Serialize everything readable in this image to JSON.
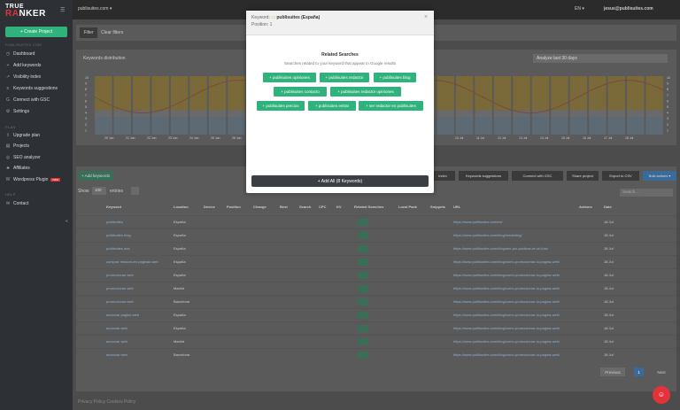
{
  "brand": {
    "line1": "TRUE",
    "line2a": "RA",
    "line2b": "NKER"
  },
  "sidebar": {
    "create_button": "+ Create Project",
    "section_main": "PUBLISUITES.COM",
    "items": [
      {
        "icon": "dashboard-icon",
        "glyph": "◷",
        "label": "Dashboard"
      },
      {
        "icon": "plus-icon",
        "glyph": "+",
        "label": "Add keywords"
      },
      {
        "icon": "chart-icon",
        "glyph": "↗",
        "label": "Visibility index"
      },
      {
        "icon": "list-icon",
        "glyph": "≡",
        "label": "Keywords suggestions"
      },
      {
        "icon": "google-icon",
        "glyph": "G",
        "label": "Connect with GSC"
      },
      {
        "icon": "gear-icon",
        "glyph": "⚙",
        "label": "Settings"
      }
    ],
    "section_plan": "PLAN",
    "plan_items": [
      {
        "icon": "upgrade-icon",
        "glyph": "⇪",
        "label": "Upgrade plan"
      },
      {
        "icon": "projects-icon",
        "glyph": "▤",
        "label": "Projects"
      },
      {
        "icon": "seo-icon",
        "glyph": "◎",
        "label": "SEO analyzer"
      },
      {
        "icon": "affiliate-icon",
        "glyph": "♣",
        "label": "Affiliates"
      },
      {
        "icon": "wordpress-icon",
        "glyph": "W",
        "label": "Wordpress Plugin",
        "badge": "new"
      }
    ],
    "section_help": "HELP",
    "help_items": [
      {
        "icon": "contact-icon",
        "glyph": "✉",
        "label": "Contact"
      }
    ]
  },
  "topbar": {
    "project": "publisuites.com ▾",
    "lang": "EN ▾",
    "email": "jesus@publisuites.com"
  },
  "background": {
    "filter_label": "Filter",
    "clear_filters": "Clear filters",
    "chart_title": "Keywords distribution",
    "analyze": "Analyze last 30 days",
    "dates_left": [
      "20 Jun",
      "21 Jun",
      "22 Jun",
      "23 Jun",
      "24 Jun",
      "25 Jun",
      "26 Jun",
      "27 Jun"
    ],
    "dates_right": [
      "10 Jul",
      "11 Jul",
      "12 Jul",
      "13 Jul",
      "14 Jul",
      "15 Jul",
      "16 Jul",
      "17 Jul",
      "18 Jul"
    ],
    "yleft": [
      "10",
      "9",
      "8",
      "7",
      "6",
      "5",
      "4",
      "3",
      "2",
      "1"
    ],
    "yright": [
      "10",
      "9",
      "8",
      "7",
      "6",
      "5",
      "4",
      "3",
      "2",
      "1"
    ],
    "add_keywords": "+ Add keywords",
    "show": "Show",
    "entries_select": "100",
    "entries": "entries",
    "actions": [
      "Index",
      "Keywords suggestions",
      "Connect with GSC",
      "Share project",
      "Export to CSV",
      "Bulk actions ▾"
    ],
    "search_placeholder": "Search...",
    "columns": [
      "Keyword",
      "Location",
      "Device",
      "Position",
      "Change",
      "Best",
      "Search",
      "CPC",
      "KV",
      "Related Searches",
      "Local Pack",
      "Snippets",
      "URL",
      "Actions",
      "Date"
    ],
    "rows": [
      {
        "keyword": "publisuites",
        "location": "España",
        "url": "https://www.publisuites.com/es/",
        "date": "18 Jul"
      },
      {
        "keyword": "publisuites blog",
        "location": "España",
        "url": "https://www.publisuites.com/blog/marketing/",
        "date": "18 Jul"
      },
      {
        "keyword": "publisuites ads",
        "location": "España",
        "url": "https://www.publisuites.com/blog/seo-por-publicar-en-el-foro/",
        "date": "18 Jul"
      },
      {
        "keyword": "comprar enlaces en paginas web",
        "location": "España",
        "url": "https://www.publisuites.com/blog/como-promocionar-tu-pagina-web/",
        "date": "18 Jul"
      },
      {
        "keyword": "promocionar web",
        "location": "España",
        "url": "https://www.publisuites.com/blog/como-promocionar-tu-pagina-web/",
        "date": "18 Jul"
      },
      {
        "keyword": "promocionar web",
        "location": "Madrid",
        "url": "https://www.publisuites.com/blog/como-promocionar-tu-pagina-web/",
        "date": "18 Jul"
      },
      {
        "keyword": "promocionar web",
        "location": "Barcelona",
        "url": "https://www.publisuites.com/blog/como-promocionar-tu-pagina-web/",
        "date": "18 Jul"
      },
      {
        "keyword": "anunciar pagina web",
        "location": "España",
        "url": "https://www.publisuites.com/blog/como-promocionar-tu-pagina-web/",
        "date": "18 Jul"
      },
      {
        "keyword": "anunciar web",
        "location": "España",
        "url": "https://www.publisuites.com/blog/como-promocionar-tu-pagina-web/",
        "date": "18 Jul"
      },
      {
        "keyword": "anunciar web",
        "location": "Madrid",
        "url": "https://www.publisuites.com/blog/como-promocionar-tu-pagina-web/",
        "date": "18 Jul"
      },
      {
        "keyword": "anunciar web",
        "location": "Barcelona",
        "url": "https://www.publisuites.com/blog/como-promocionar-tu-pagina-web/",
        "date": "18 Jul"
      }
    ],
    "pager": {
      "previous": "Previous",
      "page": "1",
      "next": "Next"
    },
    "footer": "Privacy Policy   Cookies Policy"
  },
  "modal": {
    "keyword_label": "Keyword:",
    "keyword_value": "publisuites (España)",
    "position_label": "Position:",
    "position_value": "1",
    "close": "×",
    "title": "Related Searches",
    "subtitle": "Searches related to your keyword that appear in Google results",
    "chips": [
      "+ publisuites opiniones",
      "+ publisuites redactor",
      "+ publisuites blog",
      "+ publisuites contacto",
      "+ publisuites redactor opiniones",
      "+ publisuites precios",
      "+ publisuites entrar",
      "+ ser redactor en publisuites"
    ],
    "add_all": "+ Add All (8 Keywords)"
  },
  "colors": {
    "green": "#2fb27c",
    "red": "#e2333a",
    "yellow": "#d4a62a",
    "blue": "#8ab0cc"
  }
}
